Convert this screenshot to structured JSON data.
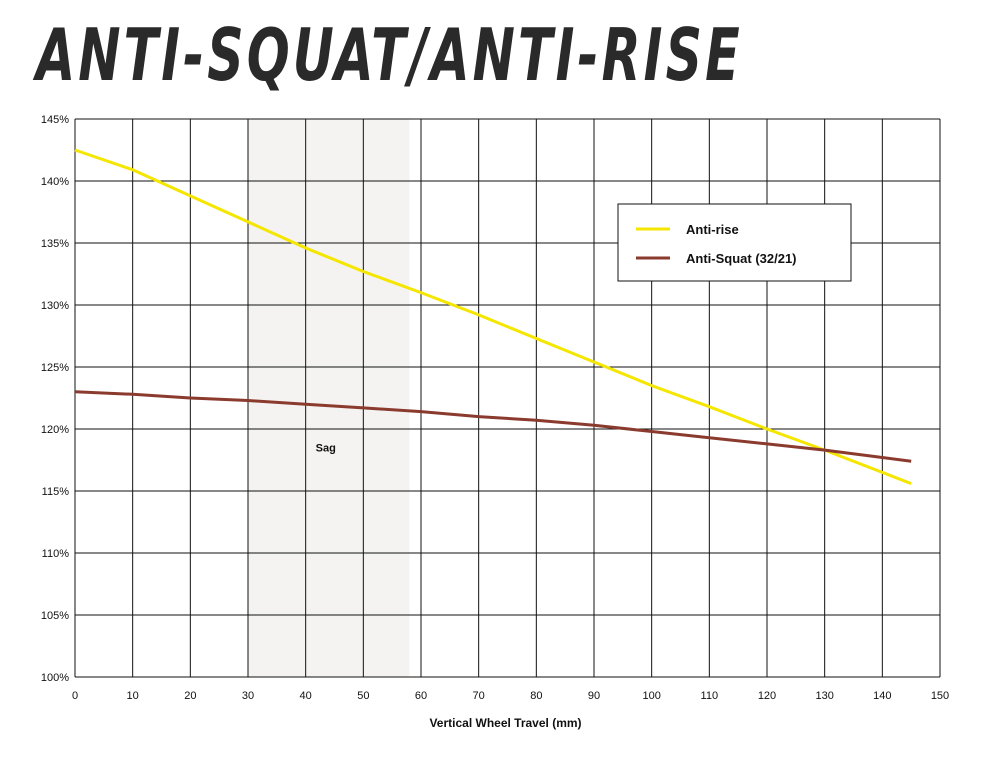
{
  "title": "ANTI-SQUAT/ANTI-RISE",
  "chart_data": {
    "type": "line",
    "title": "ANTI-SQUAT/ANTI-RISE",
    "xlabel": "Vertical Wheel Travel (mm)",
    "ylabel": "",
    "xlim": [
      0,
      150
    ],
    "ylim": [
      100,
      145
    ],
    "x_ticks": [
      0,
      10,
      20,
      30,
      40,
      50,
      60,
      70,
      80,
      90,
      100,
      110,
      120,
      130,
      140,
      150
    ],
    "y_ticks": [
      100,
      105,
      110,
      115,
      120,
      125,
      130,
      135,
      140,
      145
    ],
    "y_tick_suffix": "%",
    "grid": true,
    "legend_position": "top-right",
    "band": {
      "label": "Sag",
      "x_range": [
        30,
        58
      ],
      "color": "#f4f3f1"
    },
    "series": [
      {
        "name": "Anti-rise",
        "color": "#f5e600",
        "x": [
          0,
          10,
          20,
          30,
          40,
          50,
          60,
          70,
          80,
          90,
          100,
          110,
          120,
          130,
          140,
          145
        ],
        "y": [
          142.5,
          140.9,
          138.8,
          136.7,
          134.6,
          132.7,
          131.0,
          129.2,
          127.3,
          125.4,
          123.5,
          121.8,
          120.0,
          118.3,
          116.5,
          115.6
        ]
      },
      {
        "name": "Anti-Squat (32/21)",
        "color": "#8b3a2e",
        "x": [
          0,
          10,
          20,
          30,
          40,
          50,
          60,
          70,
          80,
          90,
          100,
          110,
          120,
          130,
          140,
          145
        ],
        "y": [
          123.0,
          122.8,
          122.5,
          122.3,
          122.0,
          121.7,
          121.4,
          121.0,
          120.7,
          120.3,
          119.8,
          119.3,
          118.8,
          118.3,
          117.7,
          117.4
        ]
      }
    ]
  }
}
